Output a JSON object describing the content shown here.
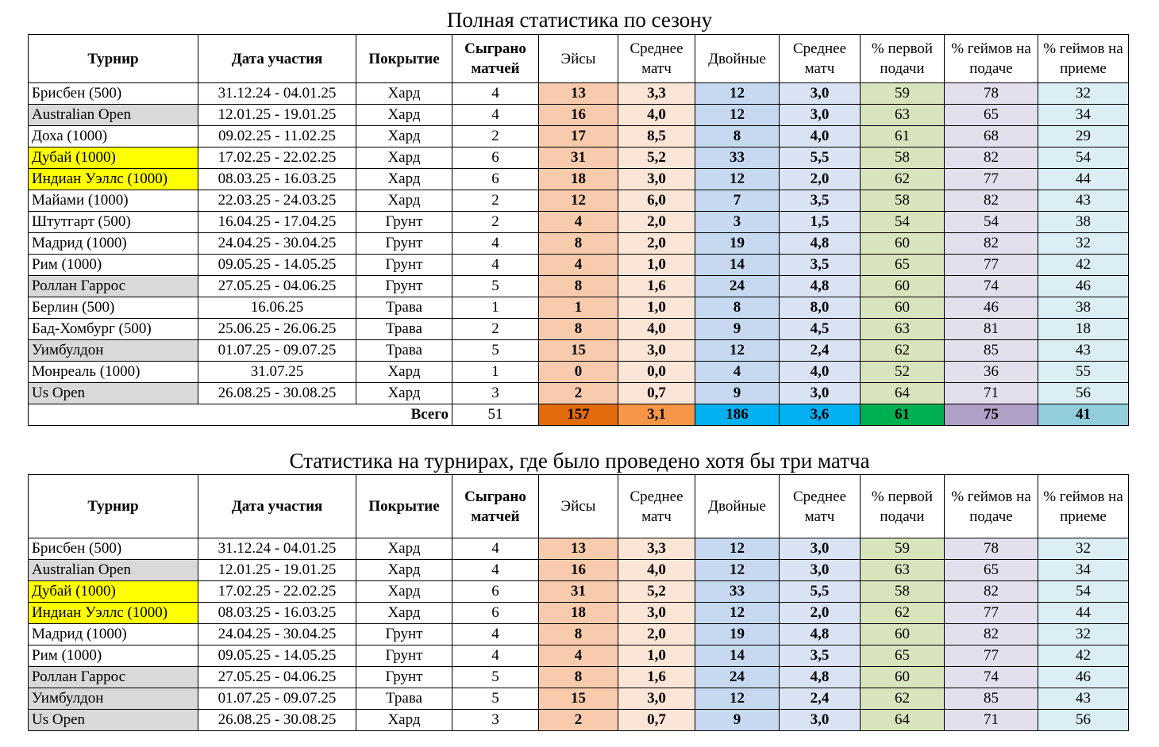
{
  "title1": "Полная статистика по сезону",
  "title2": "Статистика на турнирах, где было проведено хотя бы три матча",
  "headers": [
    "Турнир",
    "Дата участия",
    "Покрытие",
    "Сыграно матчей",
    "Эйсы",
    "Среднее матч",
    "Двойные",
    "Среднее матч",
    "% первой подачи",
    "% геймов на подаче",
    "% геймов на приеме"
  ],
  "colors": {
    "highlight_yellow": "#ffff00",
    "highlight_gray": "#d9d9d9",
    "aces": "#f8cbad",
    "double_faults": "#c6d9f1",
    "first_serve": "#d8e4bc",
    "service_games": "#e4dfec",
    "return_games": "#daeef3"
  },
  "table1": {
    "rows": [
      {
        "name": "Брисбен (500)",
        "hl": "",
        "date": "31.12.24 - 04.01.25",
        "surface": "Хард",
        "matches": "4",
        "aces": "13",
        "aces_avg": "3,3",
        "df": "12",
        "df_avg": "3,0",
        "first": "59",
        "svc": "78",
        "ret": "32"
      },
      {
        "name": "Australian Open",
        "hl": "gray",
        "date": "12.01.25 - 19.01.25",
        "surface": "Хард",
        "matches": "4",
        "aces": "16",
        "aces_avg": "4,0",
        "df": "12",
        "df_avg": "3,0",
        "first": "63",
        "svc": "65",
        "ret": "34"
      },
      {
        "name": "Доха (1000)",
        "hl": "",
        "date": "09.02.25 - 11.02.25",
        "surface": "Хард",
        "matches": "2",
        "aces": "17",
        "aces_avg": "8,5",
        "df": "8",
        "df_avg": "4,0",
        "first": "61",
        "svc": "68",
        "ret": "29"
      },
      {
        "name": "Дубай (1000)",
        "hl": "yellow",
        "date": "17.02.25 - 22.02.25",
        "surface": "Хард",
        "matches": "6",
        "aces": "31",
        "aces_avg": "5,2",
        "df": "33",
        "df_avg": "5,5",
        "first": "58",
        "svc": "82",
        "ret": "54"
      },
      {
        "name": "Индиан Уэллс (1000)",
        "hl": "yellow",
        "date": "08.03.25 - 16.03.25",
        "surface": "Хард",
        "matches": "6",
        "aces": "18",
        "aces_avg": "3,0",
        "df": "12",
        "df_avg": "2,0",
        "first": "62",
        "svc": "77",
        "ret": "44"
      },
      {
        "name": "Майами (1000)",
        "hl": "",
        "date": "22.03.25 - 24.03.25",
        "surface": "Хард",
        "matches": "2",
        "aces": "12",
        "aces_avg": "6,0",
        "df": "7",
        "df_avg": "3,5",
        "first": "58",
        "svc": "82",
        "ret": "43"
      },
      {
        "name": "Штутгарт (500)",
        "hl": "",
        "date": "16.04.25 - 17.04.25",
        "surface": "Грунт",
        "matches": "2",
        "aces": "4",
        "aces_avg": "2,0",
        "df": "3",
        "df_avg": "1,5",
        "first": "54",
        "svc": "54",
        "ret": "38"
      },
      {
        "name": "Мадрид (1000)",
        "hl": "",
        "date": "24.04.25 - 30.04.25",
        "surface": "Грунт",
        "matches": "4",
        "aces": "8",
        "aces_avg": "2,0",
        "df": "19",
        "df_avg": "4,8",
        "first": "60",
        "svc": "82",
        "ret": "32"
      },
      {
        "name": "Рим (1000)",
        "hl": "",
        "date": "09.05.25 - 14.05.25",
        "surface": "Грунт",
        "matches": "4",
        "aces": "4",
        "aces_avg": "1,0",
        "df": "14",
        "df_avg": "3,5",
        "first": "65",
        "svc": "77",
        "ret": "42"
      },
      {
        "name": "Роллан Гаррос",
        "hl": "gray",
        "date": "27.05.25 - 04.06.25",
        "surface": "Грунт",
        "matches": "5",
        "aces": "8",
        "aces_avg": "1,6",
        "df": "24",
        "df_avg": "4,8",
        "first": "60",
        "svc": "74",
        "ret": "46"
      },
      {
        "name": "Берлин (500)",
        "hl": "",
        "date": "16.06.25",
        "surface": "Трава",
        "matches": "1",
        "aces": "1",
        "aces_avg": "1,0",
        "df": "8",
        "df_avg": "8,0",
        "first": "60",
        "svc": "46",
        "ret": "38"
      },
      {
        "name": "Бад-Хомбург (500)",
        "hl": "",
        "date": "25.06.25 - 26.06.25",
        "surface": "Трава",
        "matches": "2",
        "aces": "8",
        "aces_avg": "4,0",
        "df": "9",
        "df_avg": "4,5",
        "first": "63",
        "svc": "81",
        "ret": "18"
      },
      {
        "name": "Уимбулдон",
        "hl": "gray",
        "date": "01.07.25 - 09.07.25",
        "surface": "Трава",
        "matches": "5",
        "aces": "15",
        "aces_avg": "3,0",
        "df": "12",
        "df_avg": "2,4",
        "first": "62",
        "svc": "85",
        "ret": "43"
      },
      {
        "name": "Монреаль (1000)",
        "hl": "",
        "date": "31.07.25",
        "surface": "Хард",
        "matches": "1",
        "aces": "0",
        "aces_avg": "0,0",
        "df": "4",
        "df_avg": "4,0",
        "first": "52",
        "svc": "36",
        "ret": "55"
      },
      {
        "name": "Us Open",
        "hl": "gray",
        "date": "26.08.25 - 30.08.25",
        "surface": "Хард",
        "matches": "3",
        "aces": "2",
        "aces_avg": "0,7",
        "df": "9",
        "df_avg": "3,0",
        "first": "64",
        "svc": "71",
        "ret": "56"
      }
    ],
    "total": {
      "label": "Всего",
      "matches": "51",
      "aces": "157",
      "aces_avg": "3,1",
      "df": "186",
      "df_avg": "3,6",
      "first": "61",
      "svc": "75",
      "ret": "41"
    }
  },
  "table2": {
    "rows": [
      {
        "name": "Брисбен (500)",
        "hl": "",
        "date": "31.12.24 - 04.01.25",
        "surface": "Хард",
        "matches": "4",
        "aces": "13",
        "aces_avg": "3,3",
        "df": "12",
        "df_avg": "3,0",
        "first": "59",
        "svc": "78",
        "ret": "32"
      },
      {
        "name": "Australian Open",
        "hl": "gray",
        "date": "12.01.25 - 19.01.25",
        "surface": "Хард",
        "matches": "4",
        "aces": "16",
        "aces_avg": "4,0",
        "df": "12",
        "df_avg": "3,0",
        "first": "63",
        "svc": "65",
        "ret": "34"
      },
      {
        "name": "Дубай (1000)",
        "hl": "yellow",
        "date": "17.02.25 - 22.02.25",
        "surface": "Хард",
        "matches": "6",
        "aces": "31",
        "aces_avg": "5,2",
        "df": "33",
        "df_avg": "5,5",
        "first": "58",
        "svc": "82",
        "ret": "54"
      },
      {
        "name": "Индиан Уэллс (1000)",
        "hl": "yellow",
        "date": "08.03.25 - 16.03.25",
        "surface": "Хард",
        "matches": "6",
        "aces": "18",
        "aces_avg": "3,0",
        "df": "12",
        "df_avg": "2,0",
        "first": "62",
        "svc": "77",
        "ret": "44"
      },
      {
        "name": "Мадрид (1000)",
        "hl": "",
        "date": "24.04.25 - 30.04.25",
        "surface": "Грунт",
        "matches": "4",
        "aces": "8",
        "aces_avg": "2,0",
        "df": "19",
        "df_avg": "4,8",
        "first": "60",
        "svc": "82",
        "ret": "32"
      },
      {
        "name": "Рим (1000)",
        "hl": "",
        "date": "09.05.25 - 14.05.25",
        "surface": "Грунт",
        "matches": "4",
        "aces": "4",
        "aces_avg": "1,0",
        "df": "14",
        "df_avg": "3,5",
        "first": "65",
        "svc": "77",
        "ret": "42"
      },
      {
        "name": "Роллан Гаррос",
        "hl": "gray",
        "date": "27.05.25 - 04.06.25",
        "surface": "Грунт",
        "matches": "5",
        "aces": "8",
        "aces_avg": "1,6",
        "df": "24",
        "df_avg": "4,8",
        "first": "60",
        "svc": "74",
        "ret": "46"
      },
      {
        "name": "Уимбулдон",
        "hl": "gray",
        "date": "01.07.25 - 09.07.25",
        "surface": "Трава",
        "matches": "5",
        "aces": "15",
        "aces_avg": "3,0",
        "df": "12",
        "df_avg": "2,4",
        "first": "62",
        "svc": "85",
        "ret": "43"
      },
      {
        "name": "Us Open",
        "hl": "gray",
        "date": "26.08.25 - 30.08.25",
        "surface": "Хард",
        "matches": "3",
        "aces": "2",
        "aces_avg": "0,7",
        "df": "9",
        "df_avg": "3,0",
        "first": "64",
        "svc": "71",
        "ret": "56"
      }
    ]
  }
}
